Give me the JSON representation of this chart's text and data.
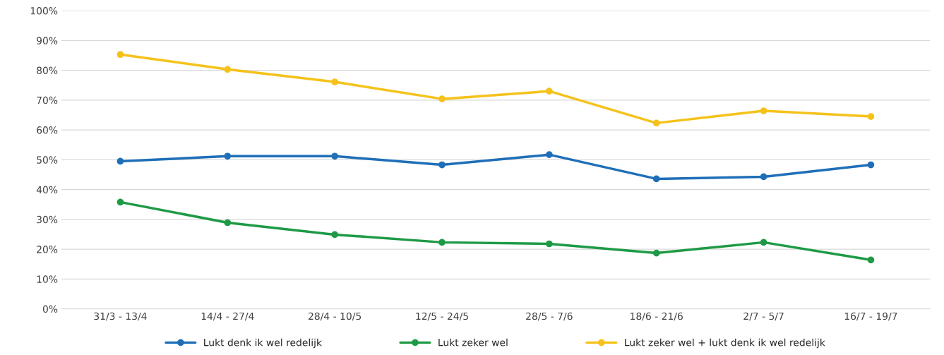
{
  "chart_data": {
    "type": "line",
    "categories": [
      "31/3 - 13/4",
      "14/4 - 27/4",
      "28/4 - 10/5",
      "12/5 - 24/5",
      "28/5 - 7/6",
      "18/6 - 21/6",
      "2/7 - 5/7",
      "16/7 - 19/7"
    ],
    "series": [
      {
        "name": "Lukt denk ik wel redelijk",
        "color": "#1f6fb8",
        "values": [
          49.5,
          51.2,
          51.2,
          48.3,
          51.7,
          43.6,
          44.3,
          48.3
        ]
      },
      {
        "name": "Lukt zeker wel",
        "color": "#1e9a46",
        "values": [
          35.8,
          28.9,
          24.9,
          22.3,
          21.8,
          18.7,
          22.3,
          16.4
        ]
      },
      {
        "name": "Lukt zeker wel + lukt denk ik wel redelijk",
        "color": "#f5c21b",
        "values": [
          85.3,
          80.3,
          76.1,
          70.4,
          73.0,
          62.3,
          66.4,
          64.5
        ]
      }
    ],
    "ylim": [
      0,
      100
    ],
    "yticks": [
      {
        "value": 0,
        "label": "0%"
      },
      {
        "value": 10,
        "label": "10%"
      },
      {
        "value": 20,
        "label": "20%"
      },
      {
        "value": 30,
        "label": "30%"
      },
      {
        "value": 40,
        "label": "40%"
      },
      {
        "value": 50,
        "label": "50%"
      },
      {
        "value": 60,
        "label": "60%"
      },
      {
        "value": 70,
        "label": "70%"
      },
      {
        "value": 80,
        "label": "80%"
      },
      {
        "value": 90,
        "label": "90%"
      },
      {
        "value": 100,
        "label": "100%"
      }
    ],
    "grid": "y",
    "legend": "bottom",
    "marker": "circle",
    "line_style": "solid"
  }
}
